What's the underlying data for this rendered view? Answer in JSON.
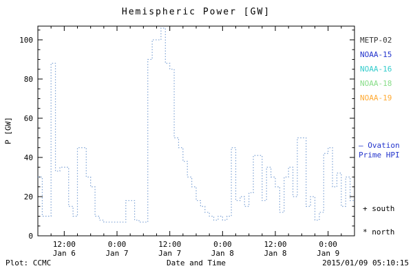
{
  "chart_data": {
    "type": "line",
    "title": "Hemispheric Power [GW]",
    "xlabel": "Date and Time",
    "ylabel": "P [GW]",
    "ylim": [
      0,
      107
    ],
    "y_ticks": [
      0,
      20,
      40,
      60,
      80,
      100
    ],
    "y_minor_step": 5,
    "xlim_hours": [
      0,
      72
    ],
    "x_minor_step_hours": 3,
    "x_ticks": [
      {
        "hour": 6,
        "time": "12:00",
        "date": "Jan 6"
      },
      {
        "hour": 18,
        "time": "0:00",
        "date": "Jan 7"
      },
      {
        "hour": 30,
        "time": "12:00",
        "date": "Jan 7"
      },
      {
        "hour": 42,
        "time": "0:00",
        "date": "Jan 8"
      },
      {
        "hour": 54,
        "time": "12:00",
        "date": "Jan 8"
      },
      {
        "hour": 66,
        "time": "0:00",
        "date": "Jan 9"
      }
    ],
    "grid": false,
    "line_color": "#7aa0d4",
    "line_style": "dotted-step",
    "series": [
      {
        "name": "Ovation Prime HPI",
        "unit": "GW",
        "hours_per_step": 1,
        "values": [
          30,
          10,
          10,
          88,
          33,
          35,
          35,
          15,
          10,
          45,
          45,
          30,
          25,
          10,
          8,
          7,
          7,
          7,
          7,
          7,
          18,
          18,
          8,
          7,
          7,
          90,
          100,
          100,
          106,
          88,
          85,
          50,
          45,
          38,
          30,
          25,
          18,
          15,
          12,
          10,
          8,
          10,
          8,
          10,
          45,
          18,
          20,
          15,
          22,
          41,
          41,
          18,
          35,
          30,
          25,
          12,
          30,
          35,
          20,
          50,
          50,
          15,
          20,
          8,
          12,
          42,
          45,
          25,
          32,
          15,
          30,
          18
        ]
      }
    ]
  },
  "legend": {
    "satellites": [
      {
        "label": "METP-02",
        "color": "#333333"
      },
      {
        "label": "NOAA-15",
        "color": "#2233cc"
      },
      {
        "label": "NOAA-16",
        "color": "#33cccc"
      },
      {
        "label": "NOAA-18",
        "color": "#88dd88"
      },
      {
        "label": "NOAA-19",
        "color": "#ffaa33"
      }
    ],
    "ovation_line1": "— Ovation",
    "ovation_line2": "Prime HPI",
    "ovation_color": "#2233cc",
    "south": "+ south",
    "north": "* north"
  },
  "footer": {
    "plot_credit": "Plot: CCMC",
    "timestamp": "2015/01/09 05:10:15"
  }
}
